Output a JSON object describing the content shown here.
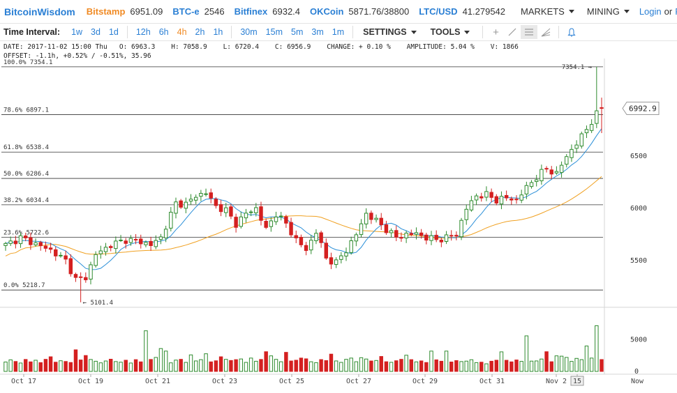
{
  "topbar": {
    "logo": "BitcoinWisdom",
    "exchanges": [
      {
        "name": "Bitstamp",
        "price": "6951.09",
        "accent": "#f08a24"
      },
      {
        "name": "BTC-e",
        "price": "2546",
        "accent": "#2a7fd4"
      },
      {
        "name": "Bitfinex",
        "price": "6932.4",
        "accent": "#2a7fd4"
      },
      {
        "name": "OKCoin",
        "price": "5871.76/38800",
        "accent": "#2a7fd4"
      },
      {
        "name": "LTC/USD",
        "price": "41.279542",
        "accent": "#2a7fd4"
      }
    ],
    "markets_label": "MARKETS",
    "mining_label": "MINING",
    "login_label": "Login",
    "or_label": "or",
    "register_label": "Re"
  },
  "toolbar": {
    "time_interval_label": "Time Interval:",
    "intervals": [
      "1w",
      "3d",
      "1d",
      "12h",
      "6h",
      "4h",
      "2h",
      "1h",
      "30m",
      "15m",
      "5m",
      "3m",
      "1m"
    ],
    "active_interval": "4h",
    "settings_label": "SETTINGS",
    "tools_label": "TOOLS",
    "tool_icons": [
      "crosshair-icon",
      "line-draw-icon",
      "horizontal-lines-icon",
      "fan-icon",
      "bell-icon"
    ]
  },
  "info": {
    "line1": "DATE: 2017-11-02 15:00 Thu   O: 6963.3    H: 7058.9    L: 6720.4    C: 6956.9    CHANGE: + 0.10 %    AMPLITUDE: 5.04 %    V: 1866",
    "line2": "OFFSET: -1.1h, +0.52% / -0.51%, 35.96"
  },
  "chart_data": {
    "type": "candlestick",
    "interval": "4h",
    "x_ticks": [
      "Oct 17",
      "Oct 19",
      "Oct 21",
      "Oct 23",
      "Oct 25",
      "Oct 27",
      "Oct 29",
      "Oct 31",
      "Nov 2",
      "15",
      "Now"
    ],
    "y_ticks": [
      5500,
      6000,
      6500
    ],
    "ylim": [
      5100,
      7400
    ],
    "current_price": "6992.9",
    "fib_levels": [
      {
        "label": "100.0% 7354.1",
        "value": 7354.1
      },
      {
        "label": "78.6% 6897.1",
        "value": 6897.1
      },
      {
        "label": "61.8% 6538.4",
        "value": 6538.4
      },
      {
        "label": "50.0% 6286.4",
        "value": 6286.4
      },
      {
        "label": "38.2% 6034.4",
        "value": 6034.4
      },
      {
        "label": "23.6% 5722.6",
        "value": 5722.6
      },
      {
        "label": "0.0% 5218.7",
        "value": 5218.7
      }
    ],
    "high_marker": {
      "label": "7354.1",
      "value": 7354.1
    },
    "low_marker": {
      "label": "5101.4",
      "value": 5101.4
    },
    "anchors": [
      [
        0,
        5650
      ],
      [
        3,
        5720
      ],
      [
        6,
        5660
      ],
      [
        9,
        5600
      ],
      [
        12,
        5500
      ],
      [
        14,
        5320
      ],
      [
        16,
        5340
      ],
      [
        18,
        5560
      ],
      [
        21,
        5650
      ],
      [
        24,
        5700
      ],
      [
        27,
        5680
      ],
      [
        29,
        5650
      ],
      [
        31,
        5720
      ],
      [
        34,
        6050
      ],
      [
        36,
        6040
      ],
      [
        38,
        6120
      ],
      [
        40,
        6150
      ],
      [
        42,
        6020
      ],
      [
        44,
        5980
      ],
      [
        46,
        5850
      ],
      [
        48,
        5950
      ],
      [
        50,
        6000
      ],
      [
        52,
        5800
      ],
      [
        54,
        5950
      ],
      [
        56,
        5850
      ],
      [
        58,
        5700
      ],
      [
        60,
        5600
      ],
      [
        62,
        5780
      ],
      [
        64,
        5520
      ],
      [
        66,
        5480
      ],
      [
        68,
        5600
      ],
      [
        70,
        5750
      ],
      [
        72,
        5950
      ],
      [
        74,
        5880
      ],
      [
        76,
        5800
      ],
      [
        78,
        5720
      ],
      [
        80,
        5750
      ],
      [
        82,
        5760
      ],
      [
        84,
        5720
      ],
      [
        86,
        5700
      ],
      [
        88,
        5720
      ],
      [
        90,
        5750
      ],
      [
        92,
        6000
      ],
      [
        94,
        6120
      ],
      [
        96,
        6130
      ],
      [
        98,
        6080
      ],
      [
        100,
        6100
      ],
      [
        102,
        6080
      ],
      [
        104,
        6200
      ],
      [
        106,
        6300
      ],
      [
        108,
        6380
      ],
      [
        110,
        6330
      ],
      [
        112,
        6500
      ],
      [
        114,
        6620
      ],
      [
        116,
        6760
      ],
      [
        118,
        6900
      ],
      [
        119,
        6970
      ],
      [
        120,
        6957
      ]
    ],
    "volume_ticks": [
      0,
      5000
    ],
    "volume": [
      1480,
      1820,
      1560,
      1320,
      1880,
      1500,
      1760,
      1380,
      1900,
      2300,
      1450,
      1680,
      1560,
      1400,
      3400,
      1800,
      2500,
      1880,
      1600,
      1350,
      1640,
      1920,
      1550,
      1450,
      1760,
      1320,
      1850,
      1500,
      6400,
      1880,
      2200,
      3600,
      3200,
      1350,
      1780,
      1900,
      1420,
      2600,
      1650,
      1850,
      2780,
      1500,
      1670,
      2300,
      1900,
      1720,
      1850,
      1960,
      1420,
      2100,
      1600,
      1880,
      3100,
      2450,
      1900,
      1520,
      3000,
      1640,
      1760,
      2100,
      1980,
      1520,
      1380,
      1860,
      1700,
      2720,
      1650,
      1420,
      1900,
      2100,
      1520,
      2160,
      1950,
      1640,
      1720,
      2350,
      1520,
      1430,
      1680,
      1900,
      2550,
      1850,
      1500,
      1650,
      1400,
      3200,
      1820,
      1600,
      3200,
      1480,
      1700,
      1550,
      1620,
      1840,
      1380,
      1450,
      1200,
      1600,
      1760,
      3080,
      1750,
      1500,
      1800,
      1580,
      5600,
      1620,
      1650,
      1950,
      3100,
      1520,
      2450,
      2400,
      2200,
      1580,
      2050,
      1850,
      4000,
      2100,
      7200,
      1866
    ]
  }
}
